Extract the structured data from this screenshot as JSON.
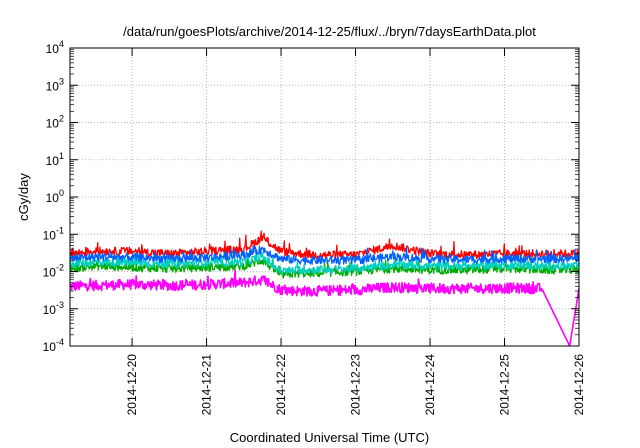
{
  "chart_data": {
    "type": "line",
    "title": "/data/run/goesPlots/archive/2014-12-25/flux/../bryn/7daysEarthData.plot",
    "xlabel": "Coordinated Universal Time (UTC)",
    "ylabel": "cGy/day",
    "y_scale": "log",
    "ylim": [
      0.0001,
      10000
    ],
    "y_ticks": [
      {
        "value": 0.0001,
        "base": "10",
        "exp": "-4"
      },
      {
        "value": 0.001,
        "base": "10",
        "exp": "-3"
      },
      {
        "value": 0.01,
        "base": "10",
        "exp": "-2"
      },
      {
        "value": 0.1,
        "base": "10",
        "exp": "-1"
      },
      {
        "value": 1,
        "base": "10",
        "exp": "0"
      },
      {
        "value": 10,
        "base": "10",
        "exp": "1"
      },
      {
        "value": 100,
        "base": "10",
        "exp": "2"
      },
      {
        "value": 1000,
        "base": "10",
        "exp": "3"
      },
      {
        "value": 10000,
        "base": "10",
        "exp": "4"
      }
    ],
    "xlim": [
      "2014-12-19 04:00",
      "2014-12-26 00:00"
    ],
    "x_ticks": [
      "2014-12-20",
      "2014-12-21",
      "2014-12-22",
      "2014-12-23",
      "2014-12-24",
      "2014-12-25",
      "2014-12-26"
    ],
    "grid": true,
    "legend": "none",
    "series": [
      {
        "color": "#ff0000",
        "x": [
          "2014-12-19 04:00",
          "2014-12-19 12:00",
          "2014-12-20 00:00",
          "2014-12-20 12:00",
          "2014-12-21 00:00",
          "2014-12-21 12:00",
          "2014-12-21 18:00",
          "2014-12-22 00:00",
          "2014-12-22 06:00",
          "2014-12-22 12:00",
          "2014-12-23 00:00",
          "2014-12-23 12:00",
          "2014-12-24 00:00",
          "2014-12-24 12:00",
          "2014-12-25 00:00",
          "2014-12-25 12:00",
          "2014-12-26 00:00"
        ],
        "values": [
          0.03,
          0.035,
          0.035,
          0.03,
          0.035,
          0.04,
          0.08,
          0.035,
          0.03,
          0.028,
          0.028,
          0.05,
          0.03,
          0.028,
          0.03,
          0.03,
          0.03
        ]
      },
      {
        "color": "#00aa00",
        "x": [
          "2014-12-19 04:00",
          "2014-12-19 12:00",
          "2014-12-20 00:00",
          "2014-12-20 12:00",
          "2014-12-21 00:00",
          "2014-12-21 12:00",
          "2014-12-21 18:00",
          "2014-12-22 00:00",
          "2014-12-22 06:00",
          "2014-12-22 12:00",
          "2014-12-23 00:00",
          "2014-12-23 12:00",
          "2014-12-24 00:00",
          "2014-12-24 12:00",
          "2014-12-25 00:00",
          "2014-12-25 12:00",
          "2014-12-26 00:00"
        ],
        "values": [
          0.012,
          0.014,
          0.013,
          0.012,
          0.013,
          0.014,
          0.02,
          0.008,
          0.009,
          0.009,
          0.01,
          0.012,
          0.011,
          0.011,
          0.012,
          0.011,
          0.011
        ]
      },
      {
        "color": "#00d0c0",
        "x": [
          "2014-12-19 04:00",
          "2014-12-19 12:00",
          "2014-12-20 00:00",
          "2014-12-20 12:00",
          "2014-12-21 00:00",
          "2014-12-21 12:00",
          "2014-12-21 18:00",
          "2014-12-22 00:00",
          "2014-12-22 06:00",
          "2014-12-22 12:00",
          "2014-12-23 00:00",
          "2014-12-23 12:00",
          "2014-12-24 00:00",
          "2014-12-24 12:00",
          "2014-12-25 00:00",
          "2014-12-25 12:00",
          "2014-12-26 00:00"
        ],
        "values": [
          0.016,
          0.018,
          0.017,
          0.016,
          0.017,
          0.018,
          0.025,
          0.01,
          0.011,
          0.011,
          0.012,
          0.015,
          0.014,
          0.014,
          0.015,
          0.014,
          0.014
        ]
      },
      {
        "color": "#0060ff",
        "x": [
          "2014-12-19 04:00",
          "2014-12-19 12:00",
          "2014-12-20 00:00",
          "2014-12-20 12:00",
          "2014-12-21 00:00",
          "2014-12-21 12:00",
          "2014-12-21 18:00",
          "2014-12-22 00:00",
          "2014-12-22 06:00",
          "2014-12-22 12:00",
          "2014-12-23 00:00",
          "2014-12-23 12:00",
          "2014-12-24 00:00",
          "2014-12-24 12:00",
          "2014-12-25 00:00",
          "2014-12-25 12:00",
          "2014-12-26 00:00"
        ],
        "values": [
          0.022,
          0.025,
          0.024,
          0.022,
          0.024,
          0.028,
          0.04,
          0.022,
          0.02,
          0.02,
          0.02,
          0.025,
          0.022,
          0.021,
          0.022,
          0.022,
          0.022
        ]
      },
      {
        "color": "#ff00ff",
        "x": [
          "2014-12-19 04:00",
          "2014-12-19 12:00",
          "2014-12-20 00:00",
          "2014-12-20 12:00",
          "2014-12-21 00:00",
          "2014-12-21 12:00",
          "2014-12-21 18:00",
          "2014-12-22 00:00",
          "2014-12-22 06:00",
          "2014-12-22 12:00",
          "2014-12-23 00:00",
          "2014-12-23 12:00",
          "2014-12-24 00:00",
          "2014-12-24 12:00",
          "2014-12-25 00:00",
          "2014-12-25 12:00",
          "2014-12-25 21:00",
          "2014-12-26 00:00"
        ],
        "values": [
          0.004,
          0.0042,
          0.0045,
          0.0042,
          0.0045,
          0.005,
          0.006,
          0.0032,
          0.003,
          0.003,
          0.0032,
          0.0038,
          0.0035,
          0.0035,
          0.0036,
          0.0035,
          0.0001,
          0.0035
        ]
      }
    ]
  }
}
